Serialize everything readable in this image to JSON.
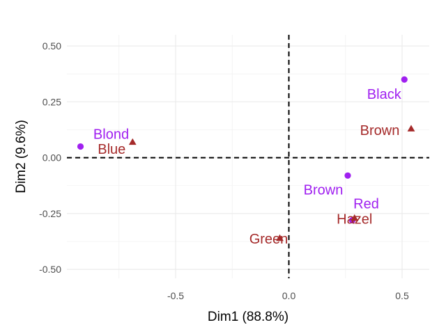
{
  "chart_data": {
    "type": "scatter",
    "xlabel": "Dim1 (88.8%)",
    "ylabel": "Dim2 (9.6%)",
    "xlim": [
      -0.98,
      0.62
    ],
    "ylim": [
      -0.54,
      0.55
    ],
    "x_ticks": [
      -0.5,
      0.0,
      0.5
    ],
    "x_tick_labels": [
      "-0.5",
      "0.0",
      "0.5"
    ],
    "y_ticks": [
      -0.5,
      -0.25,
      0.0,
      0.25,
      0.5
    ],
    "y_tick_labels": [
      "-0.50",
      "-0.25",
      "0.00",
      "0.25",
      "0.50"
    ],
    "grid": true,
    "reference_lines": {
      "x": 0,
      "y": 0,
      "style": "dashed"
    },
    "series": [
      {
        "marker": "circle",
        "color": "#a020f0",
        "points": [
          {
            "label": "Black",
            "x": 0.51,
            "y": 0.35
          },
          {
            "label": "Blond",
            "x": -0.92,
            "y": 0.05
          },
          {
            "label": "Brown",
            "x": 0.26,
            "y": -0.08
          },
          {
            "label": "Red",
            "x": 0.28,
            "y": -0.28
          }
        ]
      },
      {
        "marker": "triangle",
        "color": "#a52a2a",
        "points": [
          {
            "label": "Brown",
            "x": 0.54,
            "y": 0.13
          },
          {
            "label": "Blue",
            "x": -0.69,
            "y": 0.07
          },
          {
            "label": "Hazel",
            "x": 0.29,
            "y": -0.27
          },
          {
            "label": "Green",
            "x": -0.04,
            "y": -0.36
          }
        ]
      }
    ]
  }
}
